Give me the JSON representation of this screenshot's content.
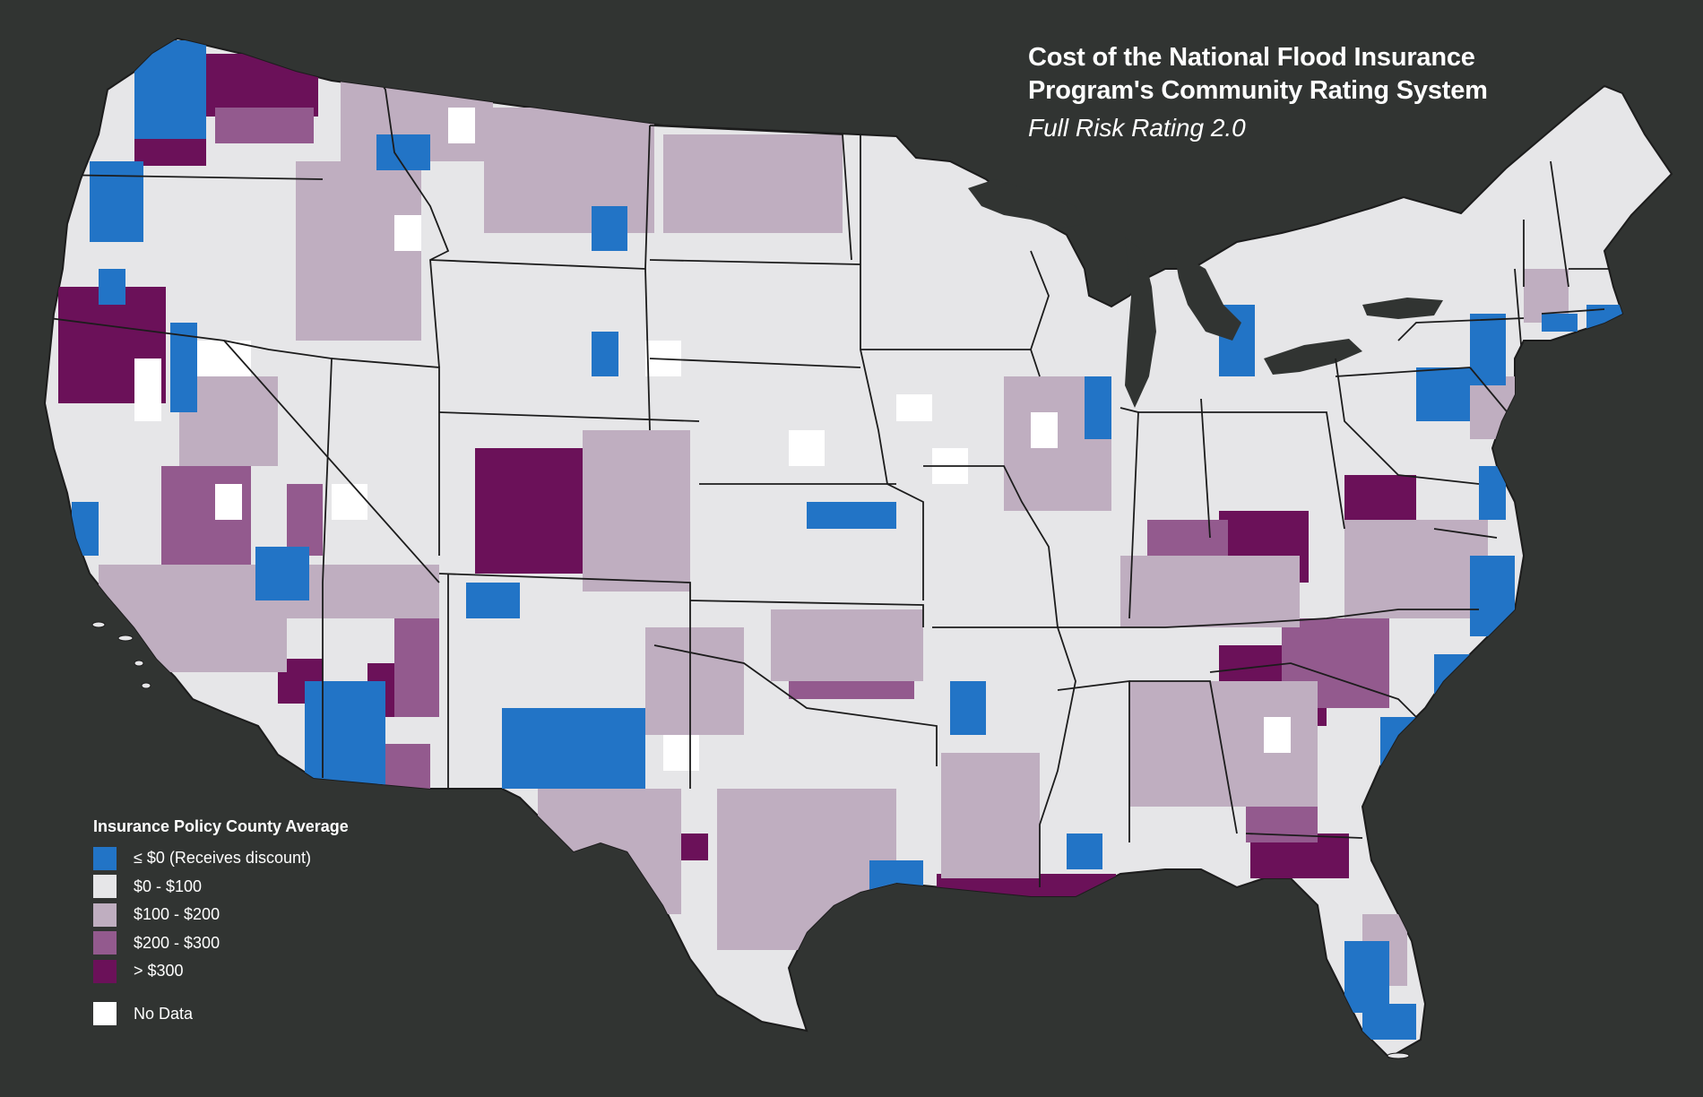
{
  "title": {
    "line1": "Cost of the National Flood Insurance",
    "line2": "Program's Community Rating System",
    "subtitle": "Full Risk Rating 2.0"
  },
  "legend": {
    "title": "Insurance Policy County Average",
    "items": [
      {
        "label": "≤ $0 (Receives discount)",
        "color": "#2274c6"
      },
      {
        "label": "$0 - $100",
        "color": "#e6e6e8"
      },
      {
        "label": "$100 - $200",
        "color": "#bfaec0"
      },
      {
        "label": "$200 - $300",
        "color": "#935a8e"
      },
      {
        "label": "> $300",
        "color": "#6b1159"
      },
      {
        "label": "No Data",
        "color": "#ffffff"
      }
    ]
  },
  "map": {
    "background": "#313432",
    "land_color": "#e6e6e8",
    "border_color": "#1c1c1c"
  }
}
